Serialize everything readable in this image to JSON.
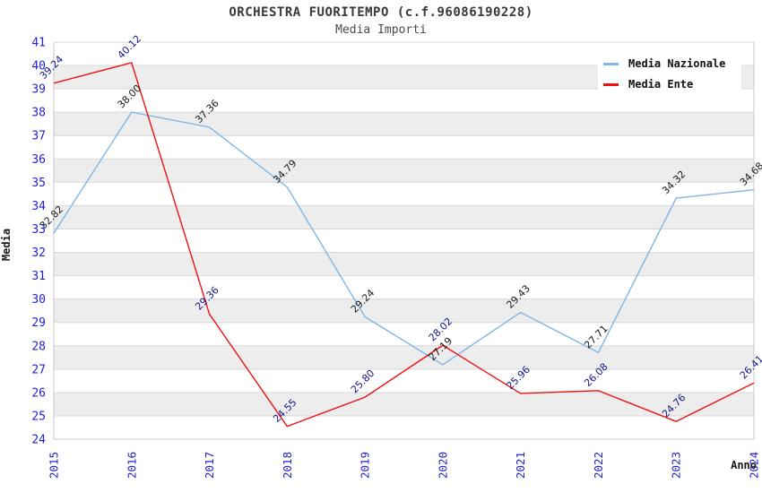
{
  "chart_data": {
    "type": "line",
    "title": "ORCHESTRA FUORITEMPO (c.f.96086190228)",
    "subtitle": "Media Importi",
    "xlabel": "Anno",
    "ylabel": "Media",
    "ylim": [
      24,
      41
    ],
    "ytick_step": 1,
    "grid": true,
    "band_stripes": true,
    "legend_position": "top-right",
    "categories": [
      "2015",
      "2016",
      "2017",
      "2018",
      "2019",
      "2020",
      "2021",
      "2022",
      "2023",
      "2024"
    ],
    "series": [
      {
        "name": "Media Nazionale",
        "color": "#7EB6E8",
        "label_color": "#1a1a1a",
        "values": [
          32.82,
          38.0,
          37.36,
          34.79,
          29.24,
          27.19,
          29.43,
          27.71,
          34.32,
          34.68
        ]
      },
      {
        "name": "Media Ente",
        "color": "#EE1212",
        "label_color": "#16168C",
        "values": [
          39.24,
          40.12,
          29.36,
          24.55,
          25.8,
          28.02,
          25.96,
          26.08,
          24.76,
          26.41
        ]
      }
    ]
  },
  "colors": {
    "tick_label": "#2222CC",
    "grid_line": "#D9D9D9",
    "band_gray": "#EDEDED",
    "spine": "#C8C8C8"
  }
}
